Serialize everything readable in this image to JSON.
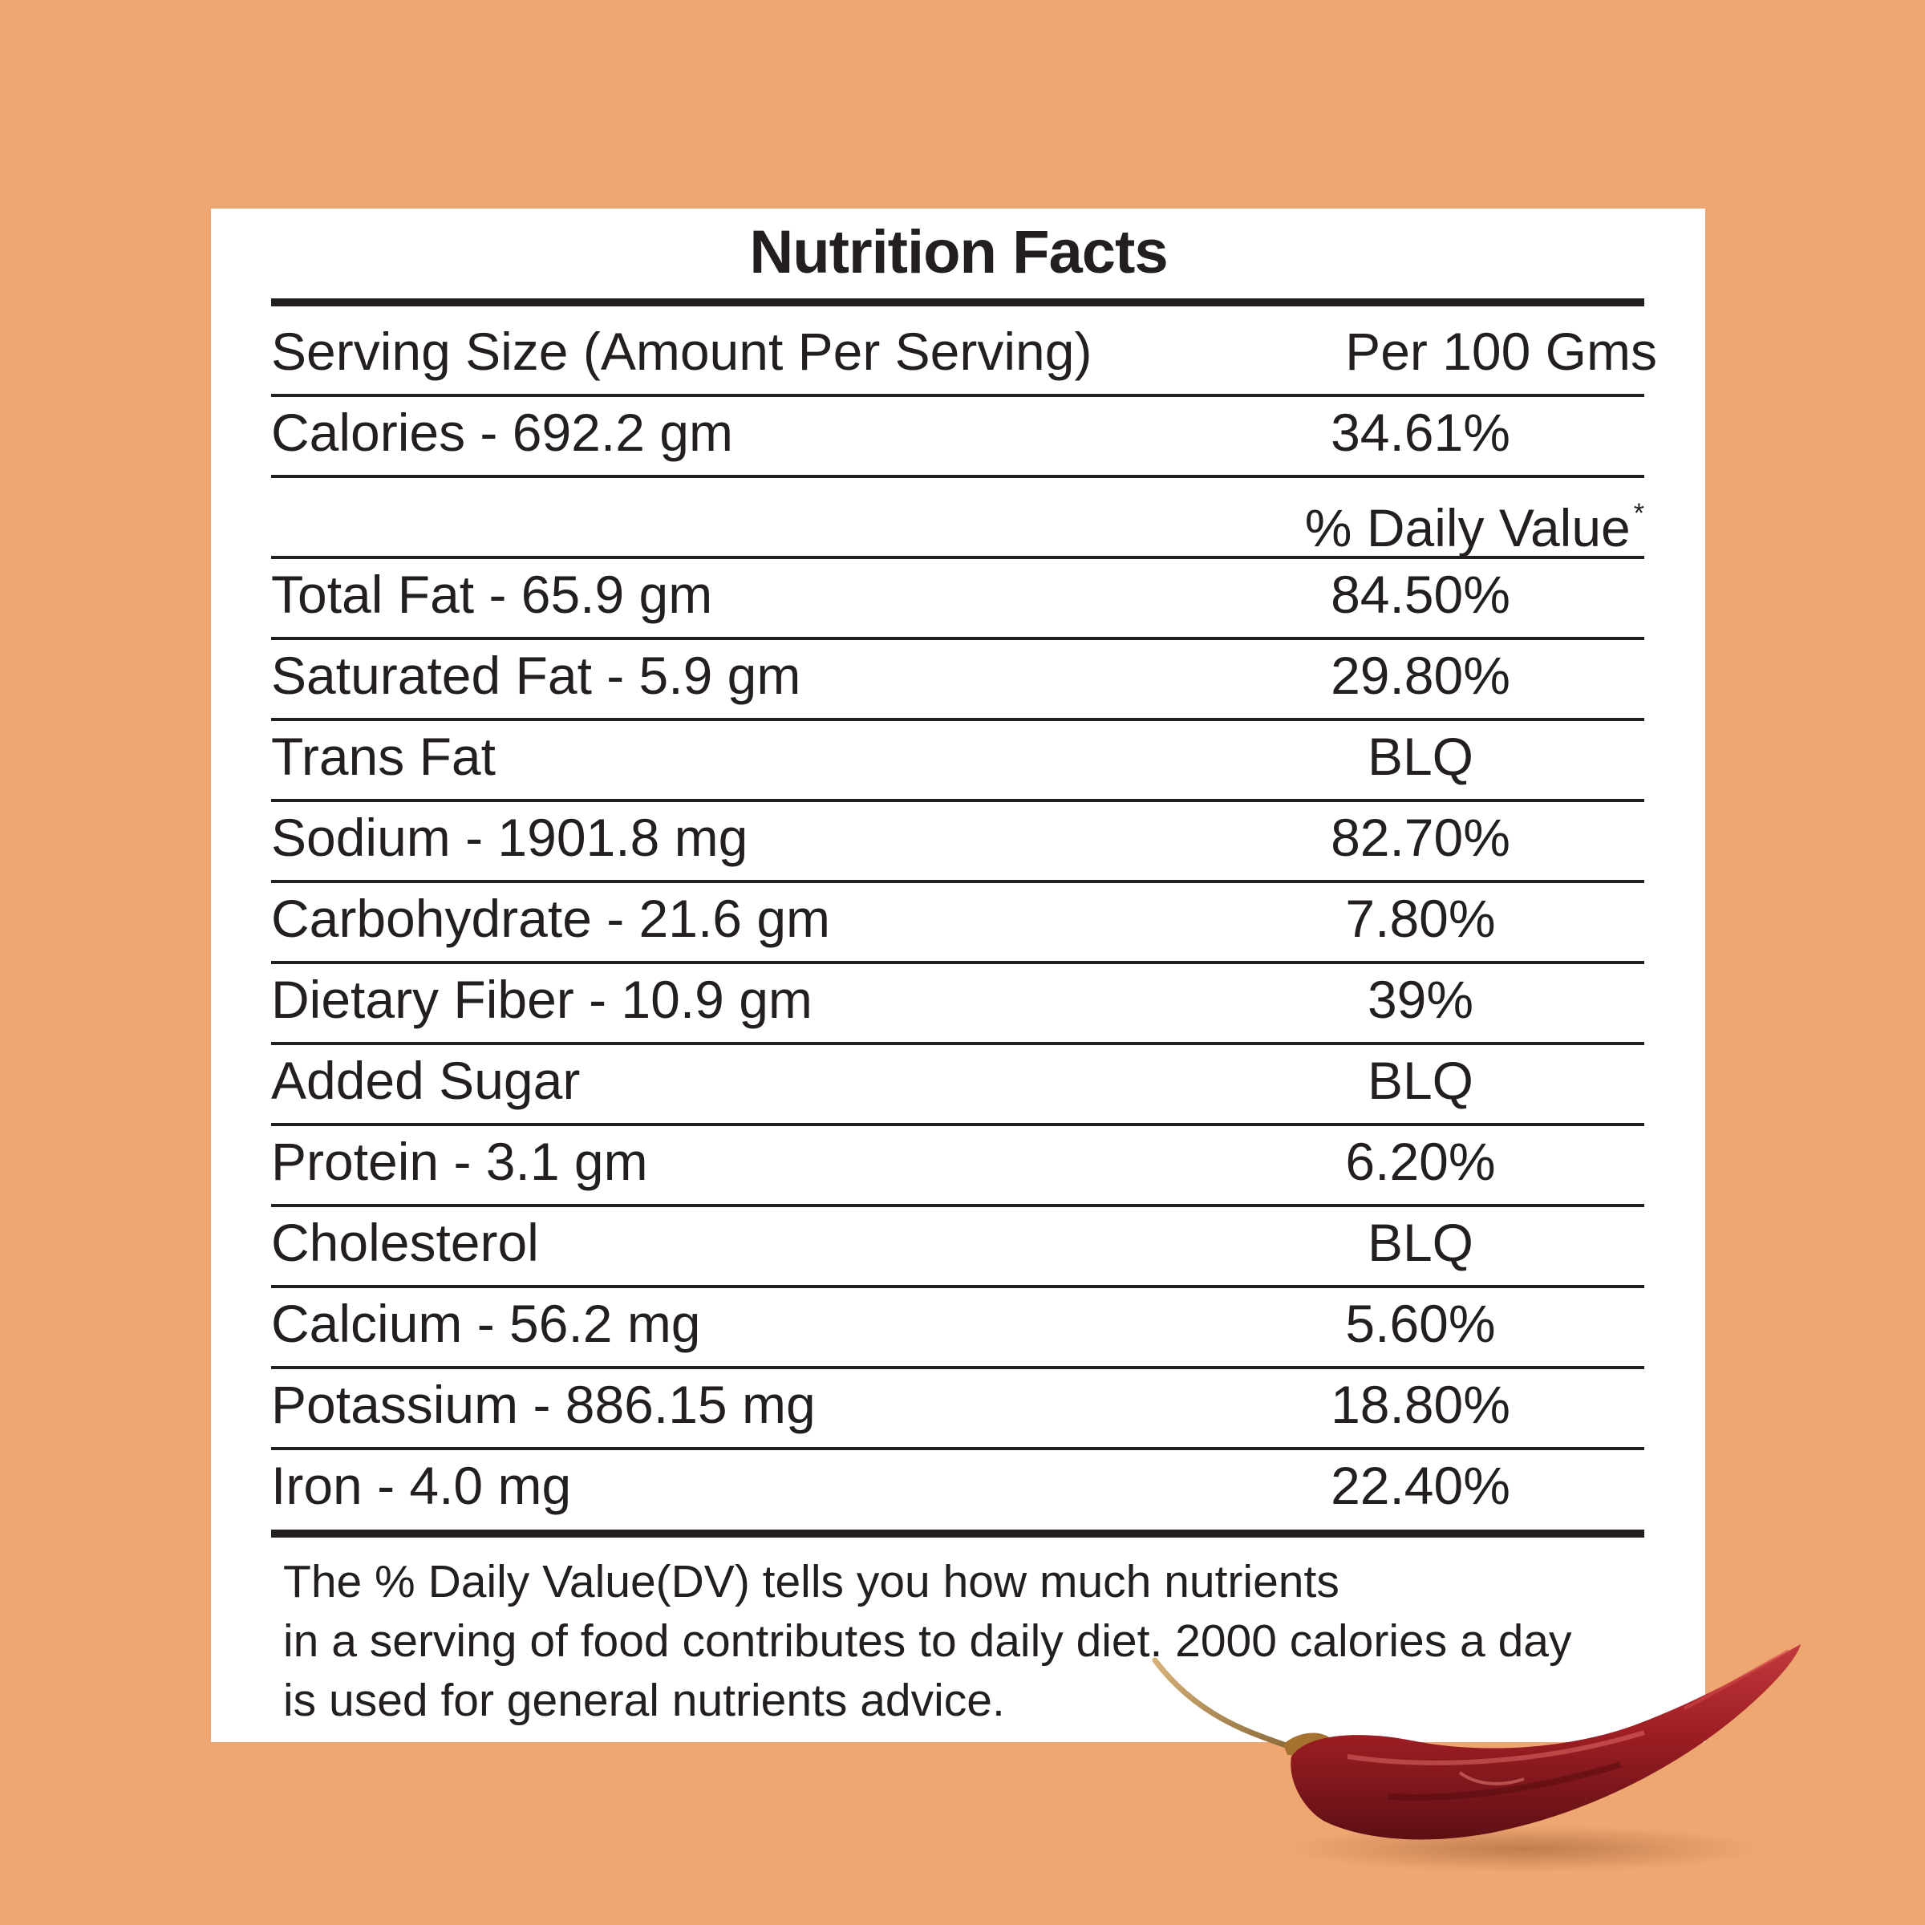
{
  "title": "Nutrition Facts",
  "serving": {
    "label": "Serving Size (Amount Per Serving)",
    "value": "Per 100 Gms"
  },
  "calories": {
    "label": "Calories - 692.2 gm",
    "value": "34.61%"
  },
  "daily_value_header": {
    "label": "% Daily Value",
    "marker": "*"
  },
  "nutrients": [
    {
      "label": "Total Fat - 65.9 gm",
      "value": "84.50%"
    },
    {
      "label": "Saturated Fat - 5.9 gm",
      "value": "29.80%"
    },
    {
      "label": "Trans Fat",
      "value": "BLQ"
    },
    {
      "label": "Sodium - 1901.8 mg",
      "value": "82.70%"
    },
    {
      "label": "Carbohydrate - 21.6 gm",
      "value": "7.80%"
    },
    {
      "label": "Dietary Fiber - 10.9 gm",
      "value": "39%"
    },
    {
      "label": "Added Sugar",
      "value": "BLQ"
    },
    {
      "label": "Protein - 3.1 gm",
      "value": "6.20%"
    },
    {
      "label": "Cholesterol",
      "value": "BLQ"
    },
    {
      "label": "Calcium - 56.2 mg",
      "value": "5.60%"
    },
    {
      "label": "Potassium - 886.15 mg",
      "value": "18.80%"
    },
    {
      "label": "Iron - 4.0 mg",
      "value": "22.40%"
    }
  ],
  "footnote": {
    "line1": "The % Daily Value(DV) tells you how much nutrients",
    "line2": "in a serving of food contributes to daily diet. 2000 calories a day",
    "line3": "is used for general nutrients advice."
  },
  "colors": {
    "background": "#EFA772",
    "panel": "#FFFFFF",
    "text": "#231F20",
    "chili": "#9E1E24"
  },
  "decoration": {
    "icon": "dried-red-chili-icon"
  }
}
